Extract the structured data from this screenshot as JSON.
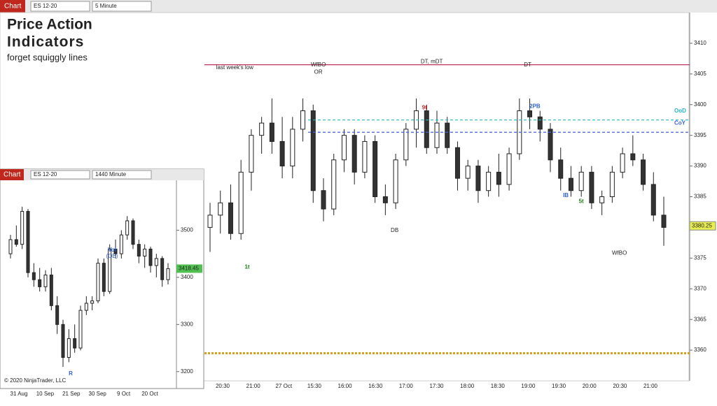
{
  "window": {
    "tab": "Chart",
    "instrument": "ES 12-20",
    "interval": "5 Minute",
    "heading": [
      "Price Action",
      "Indicators",
      "forget squiggly lines"
    ]
  },
  "chart_data": [
    {
      "type": "candlestick",
      "open": [
        3380,
        3382,
        3384,
        3379,
        3389,
        3395,
        3397,
        3394,
        3390,
        3396,
        3399,
        3386,
        3383,
        3391,
        3395,
        3389,
        3394,
        3385,
        3384,
        3391,
        3396,
        3399,
        3393,
        3397,
        3393,
        3388,
        3390,
        3386,
        3389,
        3387,
        3392,
        3399,
        3398,
        3396,
        3391,
        3388,
        3386,
        3389,
        3384,
        3385,
        3389,
        3392,
        3391,
        3387,
        3382
      ],
      "high": [
        3384,
        3386,
        3387,
        3391,
        3396,
        3398,
        3401,
        3398,
        3398,
        3401,
        3400,
        3388,
        3392,
        3396,
        3396,
        3395,
        3395,
        3387,
        3392,
        3397,
        3401,
        3400,
        3399,
        3398,
        3394,
        3391,
        3391,
        3390,
        3392,
        3393,
        3401,
        3401,
        3399,
        3397,
        3393,
        3390,
        3390,
        3390,
        3386,
        3390,
        3393,
        3395,
        3392,
        3389,
        3385
      ],
      "low": [
        3376,
        3379,
        3378,
        3378,
        3386,
        3392,
        3392,
        3388,
        3388,
        3394,
        3384,
        3381,
        3382,
        3389,
        3387,
        3388,
        3384,
        3382,
        3383,
        3390,
        3393,
        3392,
        3392,
        3392,
        3386,
        3386,
        3384,
        3385,
        3385,
        3386,
        3391,
        3396,
        3394,
        3389,
        3386,
        3385,
        3385,
        3383,
        3382,
        3384,
        3388,
        3390,
        3386,
        3381,
        3377
      ],
      "close": [
        3382,
        3384,
        3379,
        3389,
        3395,
        3397,
        3394,
        3390,
        3396,
        3399,
        3386,
        3383,
        3391,
        3395,
        3389,
        3394,
        3385,
        3384,
        3391,
        3396,
        3399,
        3393,
        3397,
        3393,
        3388,
        3390,
        3386,
        3389,
        3387,
        3392,
        3399,
        3398,
        3396,
        3391,
        3388,
        3386,
        3389,
        3384,
        3385,
        3389,
        3392,
        3391,
        3387,
        3382,
        3380
      ],
      "x_labels": [
        "20:30",
        "21:00",
        "27 Oct",
        "15:30",
        "16:00",
        "16:30",
        "17:00",
        "17:30",
        "18:00",
        "18:30",
        "19:00",
        "19:30",
        "20:00",
        "20:30",
        "21:00"
      ],
      "ylim": [
        3355,
        3415
      ],
      "yticks": [
        3360,
        3365,
        3370,
        3375,
        3380,
        3385,
        3390,
        3395,
        3400,
        3405,
        3410
      ],
      "levels": [
        {
          "name": "",
          "value": 3406.5,
          "color": "#c0305a",
          "dash": "none"
        },
        {
          "name": "OoD",
          "value": 3397.5,
          "color": "#20b8c8",
          "dash": "4 3"
        },
        {
          "name": "CoY",
          "value": 3395.5,
          "color": "#4060e0",
          "dash": "4 3"
        },
        {
          "name": "",
          "value": 3359.5,
          "color": "#d4a020",
          "dash": "3 2"
        }
      ],
      "last_price": 3380.25,
      "annotations": [
        {
          "text": "last week's low",
          "at": 2.4,
          "value": 3406
        },
        {
          "text": "WfBO",
          "at": 10.5,
          "value": 3406.5
        },
        {
          "text": "OR",
          "at": 10.5,
          "value": 3405.3
        },
        {
          "text": "DT, mDT",
          "at": 21.5,
          "value": 3407
        },
        {
          "text": "DT",
          "at": 30.8,
          "value": 3406.5
        },
        {
          "text": "2PB",
          "at": 31.5,
          "value": 3399.7
        },
        {
          "text": "DB",
          "at": 17.9,
          "value": 3379.5
        },
        {
          "text": "WfBO",
          "at": 39.7,
          "value": 3375.8
        },
        {
          "text": "IB",
          "at": 34.5,
          "value": 3385.2
        },
        {
          "text": "9t",
          "at": 20.8,
          "value": 3399.5
        },
        {
          "text": "1t",
          "at": 3.6,
          "value": 3373.5
        },
        {
          "text": "5t",
          "at": 36,
          "value": 3384.2
        }
      ]
    },
    {
      "type": "candlestick",
      "tab": "Chart",
      "instrument": "ES 12-20",
      "interval": "1440 Minute",
      "open": [
        3450,
        3480,
        3470,
        3540,
        3410,
        3395,
        3380,
        3405,
        3340,
        3300,
        3230,
        3270,
        3250,
        3330,
        3345,
        3350,
        3430,
        3370,
        3460,
        3450,
        3490,
        3520,
        3470,
        3445,
        3460,
        3425,
        3440,
        3395
      ],
      "high": [
        3490,
        3510,
        3550,
        3545,
        3430,
        3420,
        3415,
        3420,
        3360,
        3310,
        3290,
        3300,
        3340,
        3360,
        3360,
        3440,
        3440,
        3470,
        3480,
        3500,
        3530,
        3525,
        3480,
        3470,
        3465,
        3450,
        3445,
        3430
      ],
      "low": [
        3440,
        3465,
        3460,
        3400,
        3380,
        3370,
        3370,
        3330,
        3280,
        3210,
        3220,
        3240,
        3245,
        3320,
        3330,
        3345,
        3360,
        3365,
        3440,
        3440,
        3480,
        3460,
        3430,
        3420,
        3410,
        3400,
        3380,
        3385
      ],
      "close": [
        3480,
        3470,
        3540,
        3410,
        3395,
        3380,
        3405,
        3340,
        3300,
        3230,
        3270,
        3250,
        3330,
        3345,
        3350,
        3430,
        3370,
        3460,
        3450,
        3490,
        3520,
        3470,
        3445,
        3460,
        3425,
        3440,
        3395,
        3418.45
      ],
      "x_labels": [
        "31 Aug",
        "10 Sep",
        "21 Sep",
        "30 Sep",
        "9 Oct",
        "20 Oct"
      ],
      "ylim": [
        3170,
        3600
      ],
      "yticks": [
        3200,
        3300,
        3400,
        3500
      ],
      "annotations": [
        "Vol",
        "(OB)",
        "R"
      ],
      "copyright": "© 2020 NinjaTrader, LLC"
    }
  ]
}
